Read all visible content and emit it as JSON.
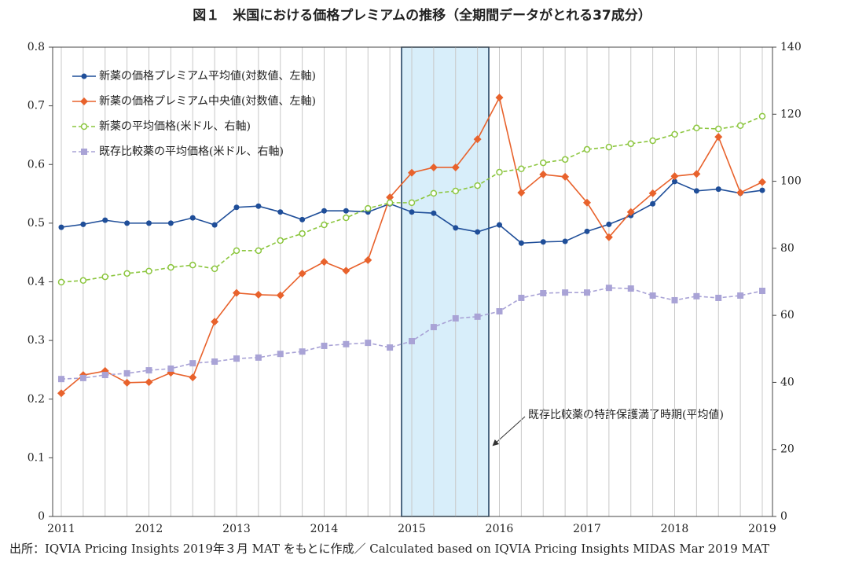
{
  "chart_data": {
    "type": "line",
    "title": "図１　米国における価格プレミアムの推移（全期間データがとれる37成分）",
    "annotation": "既存比較薬の特許保護満了時期(平均値)",
    "source": "出所：IQVIA Pricing Insights 2019年３月 MAT をもとに作成／ Calculated based on IQVIA Pricing Insights MIDAS Mar 2019 MAT",
    "categories": [
      "2011",
      null,
      null,
      null,
      "2012",
      null,
      null,
      null,
      "2013",
      null,
      null,
      null,
      "2014",
      null,
      null,
      null,
      "2015",
      null,
      null,
      null,
      "2016",
      null,
      null,
      null,
      "2017",
      null,
      null,
      null,
      "2018",
      null,
      null,
      null,
      "2019"
    ],
    "ylim": [
      0,
      0.8
    ],
    "yticks": [
      0,
      0.1,
      0.2,
      0.3,
      0.4,
      0.5,
      0.6,
      0.7,
      0.8
    ],
    "y2lim": [
      0,
      140
    ],
    "y2ticks": [
      0,
      20,
      40,
      60,
      80,
      100,
      120,
      140
    ],
    "series": [
      {
        "name": "新薬の価格プレミアム平均値(対数値、左軸)",
        "color": "#1f4e99",
        "marker": "circle",
        "dashed": false,
        "values": [
          0.493,
          0.498,
          0.505,
          0.5,
          0.5,
          0.5,
          0.509,
          0.497,
          0.527,
          0.529,
          0.519,
          0.506,
          0.521,
          0.521,
          0.519,
          0.533,
          0.519,
          0.517,
          0.492,
          0.485,
          0.497,
          0.466,
          0.468,
          0.469,
          0.486,
          0.498,
          0.513,
          0.533,
          0.571,
          0.555,
          0.558,
          0.551,
          0.556
        ]
      },
      {
        "name": "新薬の価格プレミアム中央値(対数値、左軸)",
        "color": "#e8622c",
        "marker": "diamond",
        "dashed": false,
        "values": [
          0.21,
          0.241,
          0.248,
          0.228,
          0.229,
          0.245,
          0.237,
          0.332,
          0.381,
          0.378,
          0.377,
          0.414,
          0.434,
          0.419,
          0.437,
          0.544,
          0.586,
          0.595,
          0.595,
          0.643,
          0.714,
          0.552,
          0.583,
          0.579,
          0.535,
          0.476,
          0.519,
          0.551,
          0.58,
          0.584,
          0.647,
          0.552,
          0.57
        ]
      },
      {
        "name": "新薬の平均価格(米ドル、右軸)",
        "color": "#8cc63f",
        "marker": "open-circle",
        "dashed": true,
        "axis": "y2",
        "values": [
          69.9,
          70.4,
          71.5,
          72.5,
          73.2,
          74.3,
          75.0,
          73.9,
          79.3,
          79.3,
          82.3,
          84.4,
          87.0,
          89.1,
          91.9,
          93.6,
          93.6,
          96.4,
          97.1,
          98.7,
          102.7,
          103.7,
          105.5,
          106.5,
          109.5,
          110.2,
          111.2,
          112.1,
          114.0,
          115.9,
          115.6,
          116.6,
          119.4
        ]
      },
      {
        "name": "既存比較薬の平均価格(米ドル、右軸)",
        "color": "#a9a3d6",
        "marker": "square",
        "dashed": true,
        "axis": "y2",
        "values": [
          41.0,
          41.3,
          42.2,
          42.7,
          43.6,
          44.1,
          45.7,
          46.2,
          47.1,
          47.4,
          48.5,
          49.2,
          50.9,
          51.4,
          51.8,
          50.4,
          52.3,
          56.5,
          59.1,
          59.6,
          61.2,
          65.2,
          66.6,
          66.8,
          66.8,
          68.2,
          68.0,
          65.9,
          64.5,
          65.7,
          65.2,
          65.9,
          67.3
        ]
      }
    ]
  }
}
